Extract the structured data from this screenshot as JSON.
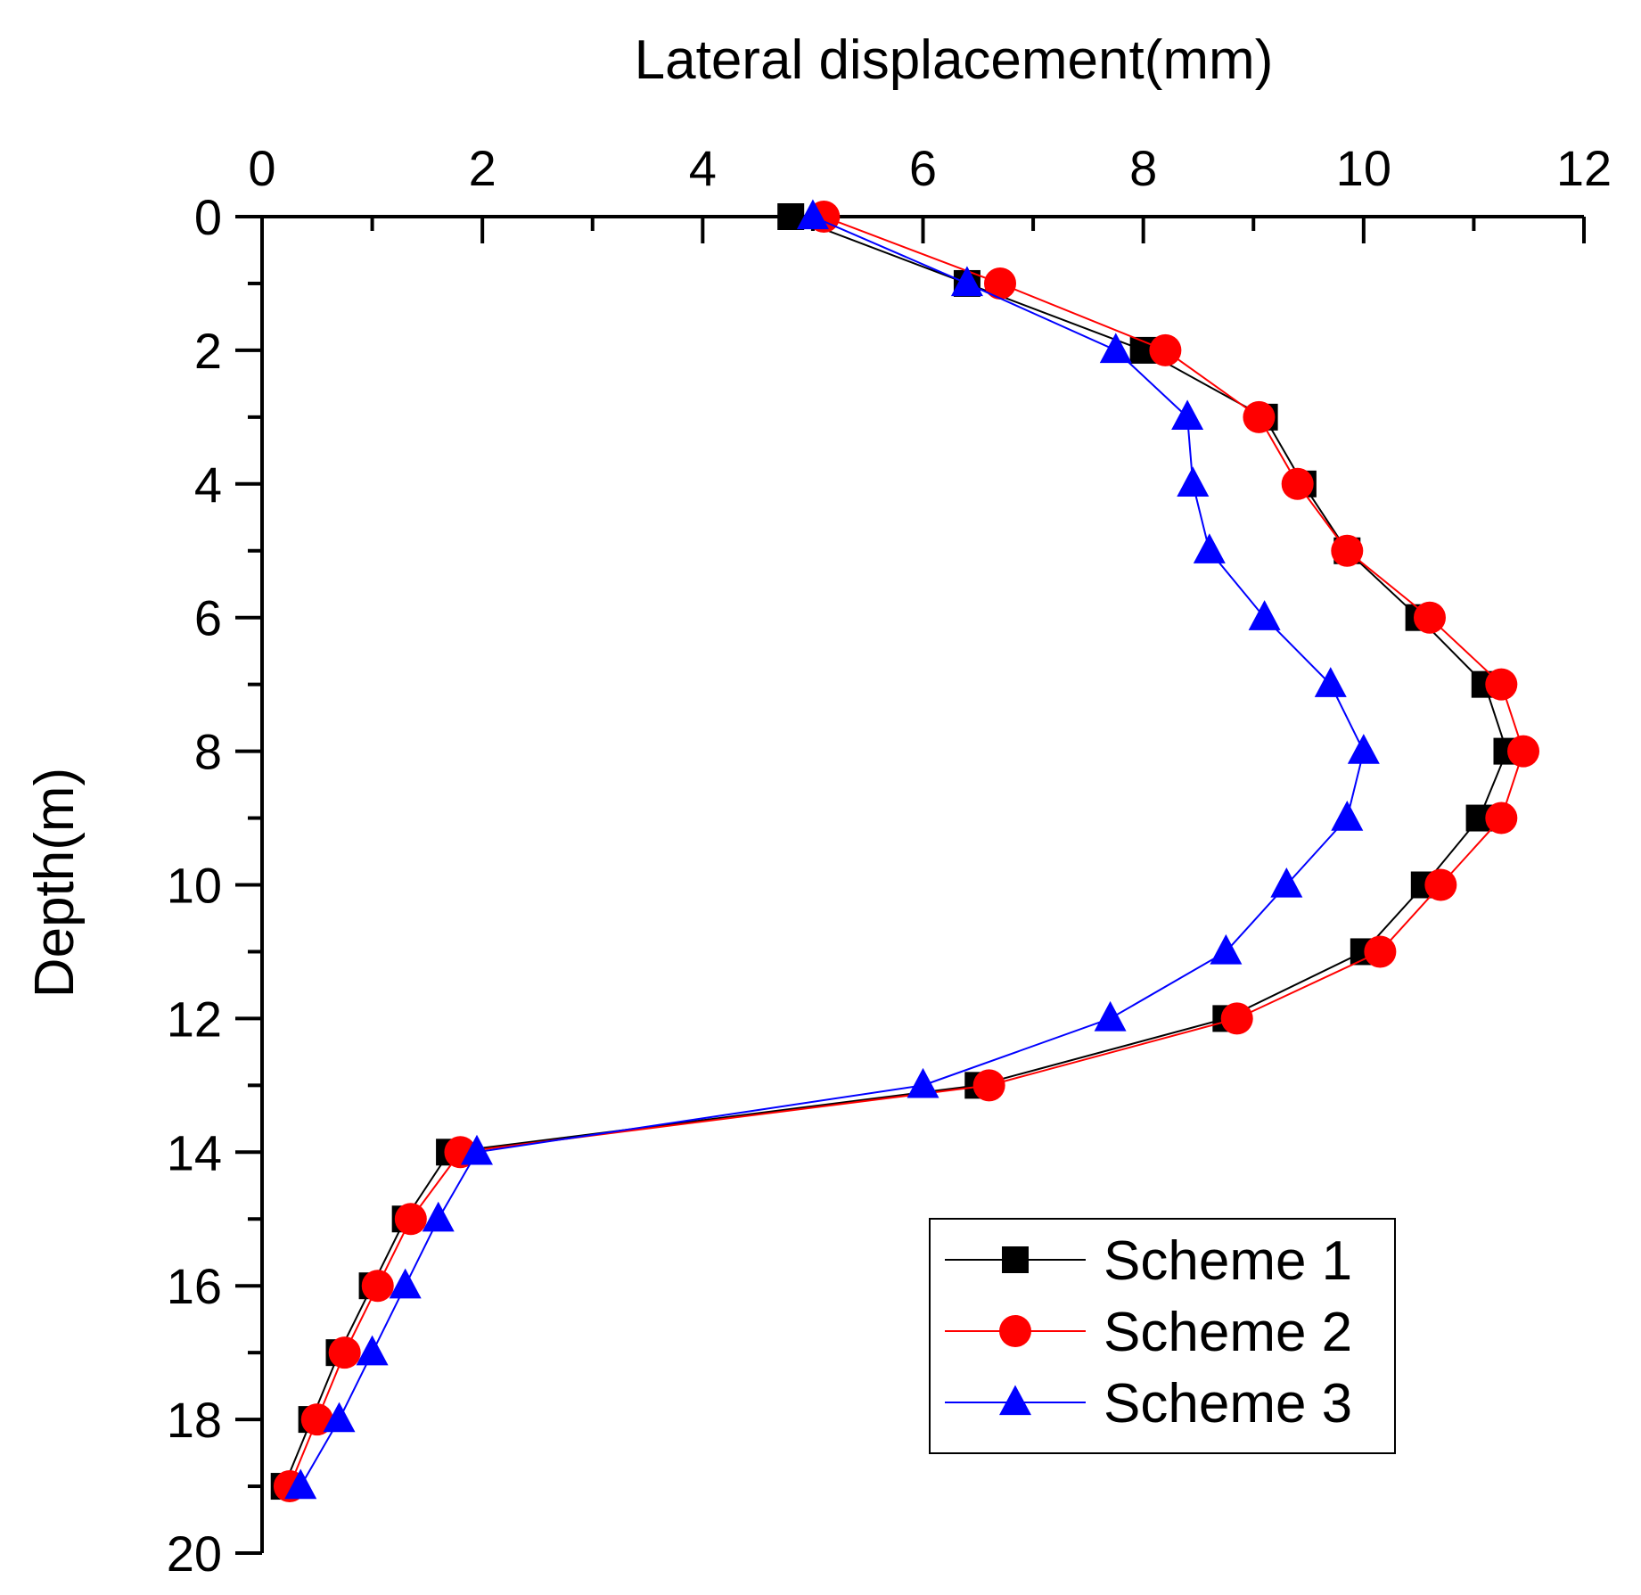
{
  "chart_data": {
    "type": "line",
    "title": "",
    "xlabel": "Lateral displacement(mm)",
    "ylabel": "Depth(m)",
    "xlim": [
      0,
      12
    ],
    "ylim": [
      0,
      20
    ],
    "x_axis_position": "top",
    "y_axis_inverted": true,
    "x_ticks": [
      "0",
      "2",
      "4",
      "6",
      "8",
      "10",
      "12"
    ],
    "y_ticks": [
      "0",
      "2",
      "4",
      "6",
      "8",
      "10",
      "12",
      "14",
      "16",
      "18",
      "20"
    ],
    "legend_position": "bottom-right",
    "series": [
      {
        "name": "Scheme 1",
        "color": "#000000",
        "marker": "square",
        "depth": [
          0,
          1,
          2,
          3,
          4,
          5,
          6,
          7,
          8,
          9,
          10,
          11,
          12,
          13,
          14,
          15,
          16,
          17,
          18,
          19
        ],
        "displacement": [
          4.8,
          6.4,
          8.0,
          9.1,
          9.45,
          9.85,
          10.5,
          11.1,
          11.3,
          11.05,
          10.55,
          10.0,
          8.75,
          6.5,
          1.7,
          1.3,
          1.0,
          0.7,
          0.45,
          0.2
        ]
      },
      {
        "name": "Scheme 2",
        "color": "#ff0000",
        "marker": "circle",
        "depth": [
          0,
          1,
          2,
          3,
          4,
          5,
          6,
          7,
          8,
          9,
          10,
          11,
          12,
          13,
          14,
          15,
          16,
          17,
          18,
          19
        ],
        "displacement": [
          5.1,
          6.7,
          8.2,
          9.05,
          9.4,
          9.85,
          10.6,
          11.25,
          11.45,
          11.25,
          10.7,
          10.15,
          8.85,
          6.6,
          1.8,
          1.35,
          1.05,
          0.75,
          0.5,
          0.25
        ]
      },
      {
        "name": "Scheme 3",
        "color": "#0000ff",
        "marker": "triangle",
        "depth": [
          0,
          1,
          2,
          3,
          4,
          5,
          6,
          7,
          8,
          9,
          10,
          11,
          12,
          13,
          14,
          15,
          16,
          17,
          18,
          19
        ],
        "displacement": [
          5.0,
          6.4,
          7.75,
          8.4,
          8.45,
          8.6,
          9.1,
          9.7,
          10.0,
          9.85,
          9.3,
          8.75,
          7.7,
          6.0,
          1.95,
          1.6,
          1.3,
          1.0,
          0.7,
          0.35
        ]
      }
    ]
  }
}
